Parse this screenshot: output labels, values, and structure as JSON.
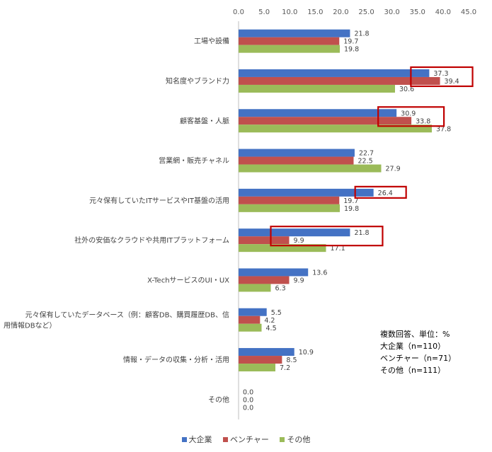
{
  "chart_data": {
    "type": "bar",
    "orientation": "horizontal",
    "categories": [
      "工場や設備",
      "知名度やブランド力",
      "顧客基盤・人脈",
      "営業網・販売チャネル",
      "元々保有していたITサービスやIT基盤の活用",
      "社外の安価なクラウドや共用ITプラットフォーム",
      "X-TechサービスのUI・UX",
      "元々保有していたデータベース（例：顧客DB、購買履歴DB、信用情報DBなど）",
      "情報・データの収集・分析・活用",
      "その他"
    ],
    "category_lines": [
      [
        "工場や設備"
      ],
      [
        "知名度やブランド力"
      ],
      [
        "顧客基盤・人脈"
      ],
      [
        "営業網・販売チャネル"
      ],
      [
        "元々保有していたITサービスやIT基盤の活用"
      ],
      [
        "社外の安価なクラウドや共用ITプラットフォーム"
      ],
      [
        "X-TechサービスのUI・UX"
      ],
      [
        "元々保有していたデータベース（例：顧客DB、購買履歴DB、信",
        "用情報DBなど）"
      ],
      [
        "情報・データの収集・分析・活用"
      ],
      [
        "その他"
      ]
    ],
    "series": [
      {
        "name": "大企業",
        "color": "#4472C4",
        "values": [
          21.8,
          37.3,
          30.9,
          22.7,
          26.4,
          21.8,
          13.6,
          5.5,
          10.9,
          0.0
        ]
      },
      {
        "name": "ベンチャー",
        "color": "#C0504D",
        "values": [
          19.7,
          39.4,
          33.8,
          22.5,
          19.7,
          9.9,
          9.9,
          4.2,
          8.5,
          0.0
        ]
      },
      {
        "name": "その他",
        "color": "#9BBB59",
        "values": [
          19.8,
          30.6,
          37.8,
          27.9,
          19.8,
          17.1,
          6.3,
          4.5,
          7.2,
          0.0
        ]
      }
    ],
    "xlim": [
      0,
      45
    ],
    "xticks": [
      "0.0",
      "5.0",
      "10.0",
      "15.0",
      "20.0",
      "25.0",
      "30.0",
      "35.0",
      "40.0",
      "45.0"
    ],
    "x_axis_position": "top",
    "legend_position": "bottom",
    "grid": false,
    "highlights": [
      {
        "category_index": 1,
        "series": [
          0,
          1
        ]
      },
      {
        "category_index": 2,
        "series": [
          0,
          1
        ]
      },
      {
        "category_index": 4,
        "series": [
          0
        ]
      },
      {
        "category_index": 5,
        "series": [
          0,
          1
        ]
      }
    ],
    "highlight_color": "#C00000"
  },
  "note": {
    "lines": [
      "複数回答、単位：%",
      "大企業（n=110）",
      "ベンチャー（n=71）",
      "その他（n=111）"
    ]
  }
}
